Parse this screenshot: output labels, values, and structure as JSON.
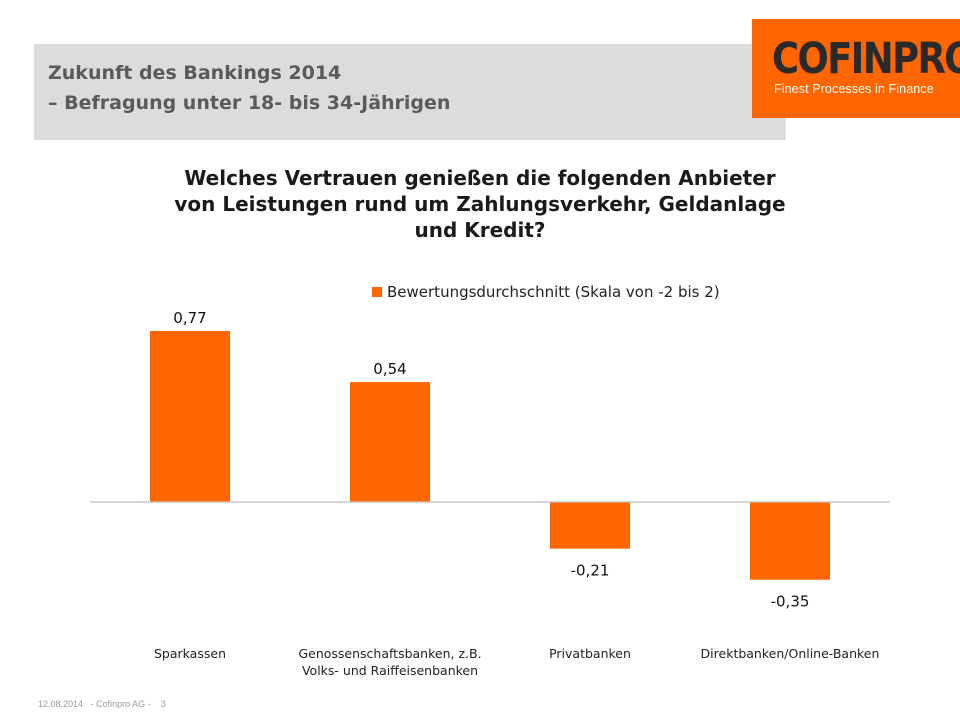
{
  "header": {
    "title_line1": "Zukunft des Bankings 2014",
    "title_line2": "– Befragung unter 18- bis 34-Jährigen"
  },
  "logo": {
    "wordmark": "COFINPRO",
    "tagline": "Finest Processes in Finance",
    "color": "#ff6600"
  },
  "chart_data": {
    "type": "bar",
    "title_lines": [
      "Welches Vertrauen genießen die folgenden Anbieter",
      "von Leistungen rund um Zahlungsverkehr, Geldanlage",
      "und Kredit?"
    ],
    "categories": [
      [
        "Sparkassen"
      ],
      [
        "Genossenschaftsbanken, z.B.",
        "Volks- und Raiffeisenbanken"
      ],
      [
        "Privatbanken"
      ],
      [
        "Direktbanken/Online-Banken"
      ]
    ],
    "series": [
      {
        "name": "Bewertungsdurchschnitt (Skala von -2 bis 2)",
        "values": [
          0.77,
          0.54,
          -0.21,
          -0.35
        ],
        "labels": [
          "0,77",
          "0,54",
          "-0,21",
          "-0,35"
        ],
        "color": "#ff6600"
      }
    ],
    "legend_position": "top",
    "ylim": [
      -0.35,
      0.77
    ],
    "grid": false
  },
  "footer": {
    "date": "12.08.2014",
    "company": "- Cofinpro AG -",
    "page": "3"
  }
}
